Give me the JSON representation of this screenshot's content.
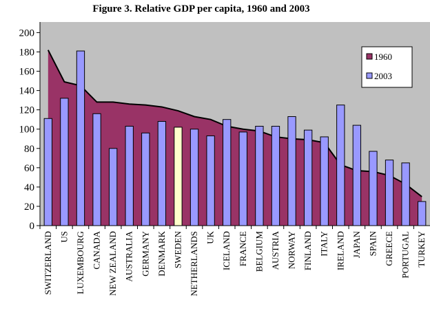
{
  "chart_data": {
    "type": "area-bar",
    "title": "Figure 3. Relative GDP per capita, 1960 and 2003",
    "categories": [
      "SWITZERLAND",
      "US",
      "LUXEMBOURG",
      "CANADA",
      "NEW ZEALAND",
      "AUSTRALIA",
      "GERMANY",
      "DENMARK",
      "SWEDEN",
      "NETHERLANDS",
      "UK",
      "ICELAND",
      "FRANCE",
      "BELGIUM",
      "AUSTRIA",
      "NORWAY",
      "FINLAND",
      "ITALY",
      "IRELAND",
      "JAPAN",
      "SPAIN",
      "GREECE",
      "PORTUGAL",
      "TURKEY"
    ],
    "series": [
      {
        "name": "1960",
        "color": "#993366",
        "kind": "area",
        "values": [
          182,
          149,
          145,
          128,
          128,
          126,
          125,
          123,
          119,
          113,
          110,
          103,
          100,
          98,
          92,
          90,
          89,
          86,
          63,
          57,
          56,
          52,
          43,
          30
        ]
      },
      {
        "name": "2003",
        "color": "#9999ff",
        "kind": "bar",
        "highlight_category": "SWEDEN",
        "highlight_color": "#ffffcc",
        "values": [
          111,
          132,
          181,
          116,
          80,
          103,
          96,
          108,
          102,
          100,
          93,
          110,
          97,
          103,
          103,
          113,
          99,
          92,
          125,
          104,
          77,
          68,
          65,
          25
        ]
      }
    ],
    "ylim": [
      0,
      211
    ],
    "yticks": [
      0,
      20,
      40,
      60,
      80,
      100,
      120,
      140,
      160,
      180,
      200
    ],
    "plot_background": "#c0c0c0",
    "legend": "upper right"
  }
}
